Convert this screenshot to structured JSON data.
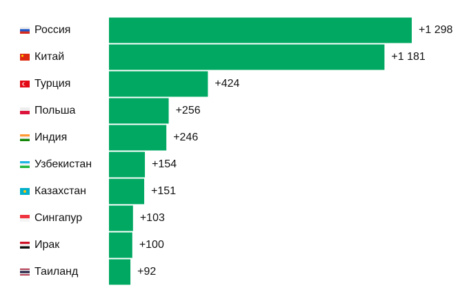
{
  "chart_data": {
    "type": "bar",
    "orientation": "horizontal",
    "categories": [
      "Россия",
      "Китай",
      "Турция",
      "Польша",
      "Индия",
      "Узбекистан",
      "Казахстан",
      "Сингапур",
      "Ирак",
      "Таиланд"
    ],
    "values": [
      1298,
      1181,
      424,
      256,
      246,
      154,
      151,
      103,
      100,
      92
    ],
    "value_labels": [
      "+1 298",
      "+1 181",
      "+424",
      "+256",
      "+246",
      "+154",
      "+151",
      "+103",
      "+100",
      "+92"
    ],
    "color": "#00a862"
  }
}
